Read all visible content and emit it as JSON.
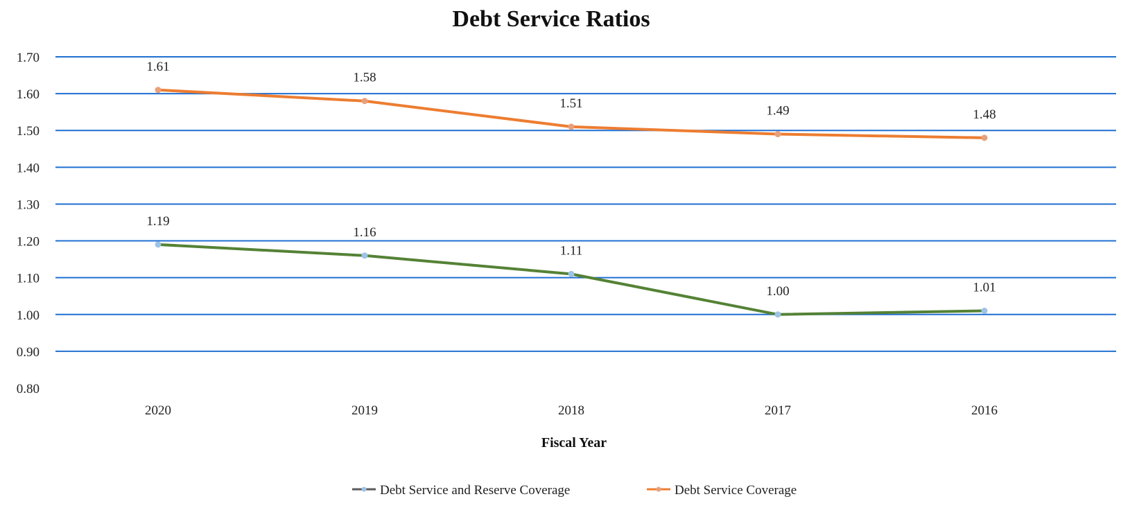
{
  "chart_data": {
    "type": "line",
    "title": "Debt Service Ratios",
    "xlabel": "Fiscal Year",
    "ylabel": "",
    "categories": [
      "2020",
      "2019",
      "2018",
      "2017",
      "2016"
    ],
    "ylim": [
      0.8,
      1.7
    ],
    "yticks": [
      "1.70",
      "1.60",
      "1.50",
      "1.40",
      "1.30",
      "1.20",
      "1.10",
      "1.00",
      "0.90",
      "0.80"
    ],
    "grid": true,
    "legend_position": "bottom",
    "series": [
      {
        "name": "Debt Service and Reserve Coverage",
        "values": [
          1.19,
          1.16,
          1.11,
          1.0,
          1.01
        ],
        "labels": [
          "1.19",
          "1.16",
          "1.11",
          "1.00",
          "1.01"
        ],
        "color": "#548235",
        "legend_color": "#5a5a5a",
        "marker_color": "#9dc3e6"
      },
      {
        "name": "Debt Service Coverage",
        "values": [
          1.61,
          1.58,
          1.51,
          1.49,
          1.48
        ],
        "labels": [
          "1.61",
          "1.58",
          "1.51",
          "1.49",
          "1.48"
        ],
        "color": "#ed7d31",
        "legend_color": "#ed7d31",
        "marker_color": "#e8a07a"
      }
    ],
    "gridline_color": "#1f6fd1"
  }
}
